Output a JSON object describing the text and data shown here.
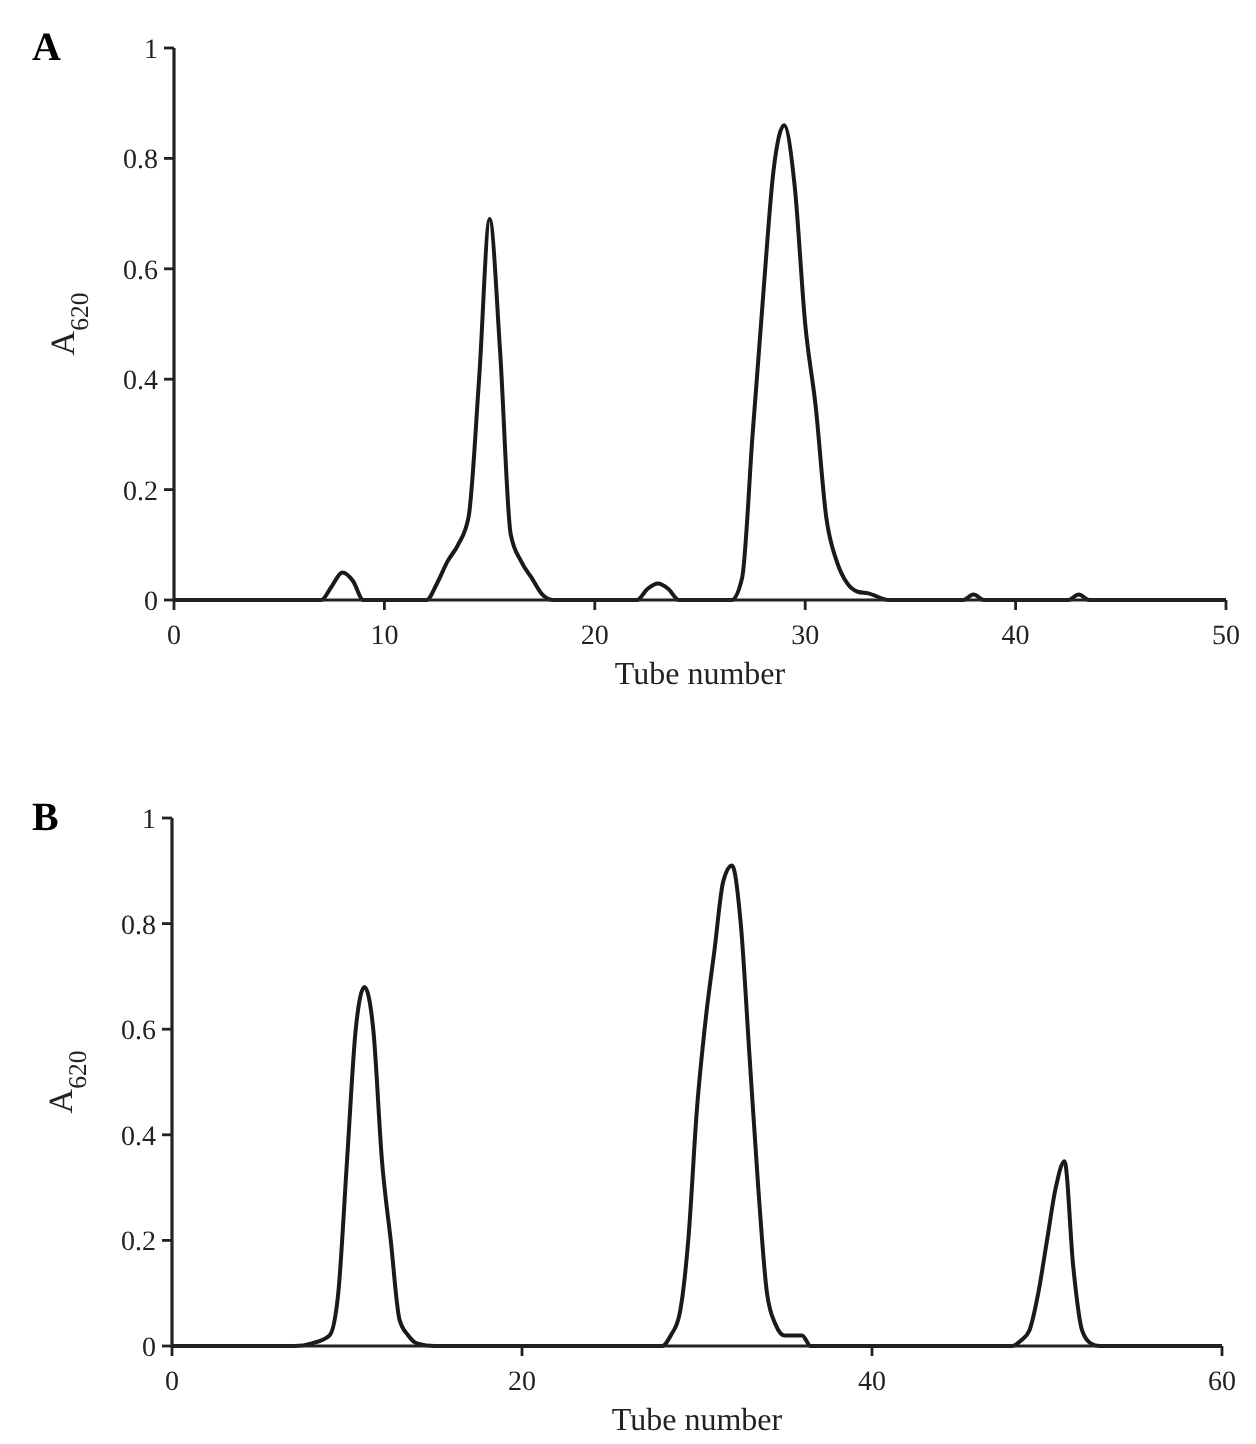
{
  "chart_data": [
    {
      "type": "line",
      "title": "A",
      "xlabel": "Tube number",
      "ylabel": "A$_{620}$",
      "xlim": [
        0,
        50
      ],
      "xticks": [
        0,
        10,
        20,
        30,
        40,
        50
      ],
      "ylim": [
        0,
        1
      ],
      "yticks": [
        0,
        0.2,
        0.4,
        0.6,
        0.8,
        1
      ],
      "series": [
        {
          "color": "#1a1a1a",
          "x": [
            0,
            7,
            7.5,
            8,
            8.5,
            9,
            12,
            12.5,
            13,
            13.5,
            14,
            14.5,
            15,
            15.5,
            16,
            16.5,
            17,
            17.5,
            18,
            22,
            22.5,
            23,
            23.5,
            24,
            26.5,
            27,
            27.5,
            28,
            28.5,
            29,
            29.5,
            30,
            30.5,
            31,
            31.5,
            32,
            32.5,
            33,
            34,
            37.5,
            38,
            38.5,
            42.5,
            43,
            43.5,
            50
          ],
          "values": [
            0,
            0,
            0.025,
            0.05,
            0.035,
            0,
            0,
            0.03,
            0.07,
            0.1,
            0.15,
            0.4,
            0.69,
            0.45,
            0.12,
            0.07,
            0.04,
            0.01,
            0,
            0,
            0.02,
            0.03,
            0.02,
            0,
            0,
            0.04,
            0.3,
            0.55,
            0.78,
            0.86,
            0.75,
            0.5,
            0.35,
            0.15,
            0.07,
            0.03,
            0.015,
            0.012,
            0,
            0,
            0.01,
            0,
            0,
            0.01,
            0,
            0
          ]
        }
      ]
    },
    {
      "type": "line",
      "title": "B",
      "xlabel": "Tube number",
      "ylabel": "A$_{620}$",
      "xlim": [
        0,
        60
      ],
      "xticks": [
        0,
        20,
        40,
        60
      ],
      "ylim": [
        0,
        1
      ],
      "yticks": [
        0,
        0.2,
        0.4,
        0.6,
        0.8,
        1
      ],
      "series": [
        {
          "color": "#1a1a1a",
          "x": [
            0,
            7,
            8,
            9,
            9.5,
            10,
            10.5,
            11,
            11.5,
            12,
            12.5,
            13,
            13.5,
            14,
            15,
            28,
            28.5,
            29,
            29.5,
            30,
            30.5,
            31,
            31.5,
            32,
            32.5,
            33,
            33.5,
            34,
            34.5,
            35,
            36,
            36.5,
            48,
            48.5,
            49,
            49.5,
            50,
            50.5,
            51,
            51.5,
            52,
            52.5,
            53,
            60
          ],
          "values": [
            0,
            0,
            0.005,
            0.02,
            0.1,
            0.35,
            0.6,
            0.68,
            0.6,
            0.35,
            0.2,
            0.05,
            0.02,
            0.005,
            0,
            0,
            0.02,
            0.06,
            0.2,
            0.45,
            0.62,
            0.75,
            0.88,
            0.91,
            0.8,
            0.55,
            0.3,
            0.1,
            0.04,
            0.02,
            0.02,
            0,
            0,
            0.01,
            0.03,
            0.1,
            0.2,
            0.3,
            0.35,
            0.15,
            0.03,
            0.005,
            0,
            0
          ]
        }
      ]
    }
  ]
}
